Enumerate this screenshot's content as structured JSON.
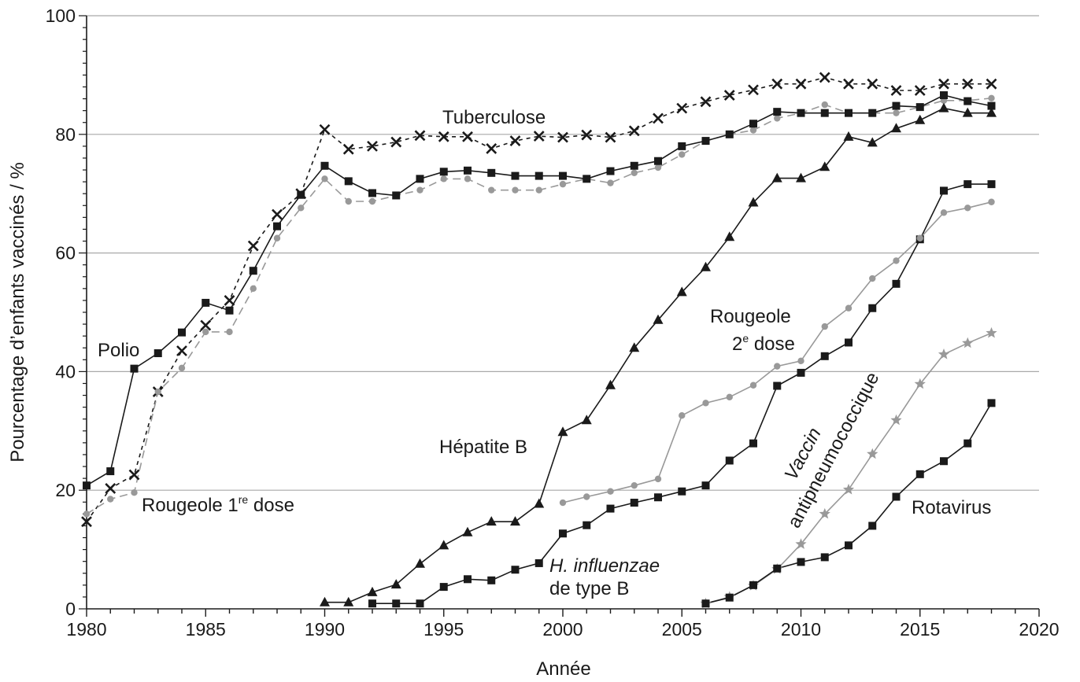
{
  "chart_data": {
    "type": "line",
    "xlabel": "Année",
    "ylabel": "Pourcentage d’enfants vaccinés / %",
    "xlim": [
      1980,
      2020
    ],
    "ylim": [
      0,
      100
    ],
    "x_ticks": [
      1980,
      1985,
      1990,
      1995,
      2000,
      2005,
      2010,
      2015,
      2020
    ],
    "y_ticks": [
      0,
      20,
      40,
      60,
      80,
      100
    ],
    "grid": "horizontal",
    "legend": "none",
    "labels": {
      "polio": "Polio",
      "rougeole1": "Rougeole 1",
      "rougeole1_sup": "re",
      "rougeole1_tail": " dose",
      "tuberculose": "Tuberculose",
      "hepatite": "Hépatite B",
      "hib_italic": "H. influenzae",
      "hib_line2": "de type B",
      "rougeole2_line1": "Rougeole",
      "rougeole2_num": "2",
      "rougeole2_sup": "e",
      "rougeole2_tail": " dose",
      "pneumo_line1": "Vaccin",
      "pneumo_line2": "antipneumococcique",
      "rotavirus": "Rotavirus"
    },
    "series": [
      {
        "id": "tuberculose",
        "color": "#1a1a1a",
        "dash": "5,5",
        "marker": "x",
        "x": [
          1980,
          1981,
          1982,
          1983,
          1984,
          1985,
          1986,
          1987,
          1988,
          1989,
          1990,
          1991,
          1992,
          1993,
          1994,
          1995,
          1996,
          1997,
          1998,
          1999,
          2000,
          2001,
          2002,
          2003,
          2004,
          2005,
          2006,
          2007,
          2008,
          2009,
          2010,
          2011,
          2012,
          2013,
          2014,
          2015,
          2016,
          2017,
          2018
        ],
        "values": [
          14.7,
          20.3,
          22.6,
          36.6,
          43.5,
          47.8,
          52.0,
          61.2,
          66.5,
          70.0,
          80.8,
          77.5,
          78.0,
          78.7,
          79.8,
          79.6,
          79.6,
          77.6,
          78.9,
          79.7,
          79.5,
          79.9,
          79.5,
          80.6,
          82.7,
          84.4,
          85.5,
          86.6,
          87.5,
          88.5,
          88.5,
          89.6,
          88.5,
          88.5,
          87.4,
          87.4,
          88.5,
          88.5,
          88.5
        ]
      },
      {
        "id": "rougeole1",
        "color": "#999999",
        "dash": "10,6",
        "marker": "circle",
        "x": [
          1980,
          1981,
          1982,
          1983,
          1984,
          1985,
          1986,
          1987,
          1988,
          1989,
          1990,
          1991,
          1992,
          1993,
          1994,
          1995,
          1996,
          1997,
          1998,
          1999,
          2000,
          2001,
          2002,
          2003,
          2004,
          2005,
          2006,
          2007,
          2008,
          2009,
          2010,
          2011,
          2012,
          2013,
          2014,
          2015,
          2016,
          2017,
          2018
        ],
        "values": [
          16.0,
          18.5,
          19.6,
          36.6,
          40.6,
          46.7,
          46.7,
          54.0,
          62.5,
          67.6,
          72.5,
          68.7,
          68.7,
          69.7,
          70.6,
          72.5,
          72.5,
          70.6,
          70.6,
          70.6,
          71.6,
          72.5,
          71.8,
          73.5,
          74.4,
          76.6,
          78.9,
          80.0,
          80.7,
          82.7,
          83.6,
          85.0,
          83.6,
          83.6,
          83.6,
          84.6,
          85.7,
          85.7,
          86.1
        ]
      },
      {
        "id": "polio",
        "color": "#1a1a1a",
        "dash": "",
        "marker": "square",
        "x": [
          1980,
          1981,
          1982,
          1983,
          1984,
          1985,
          1986,
          1987,
          1988,
          1989,
          1990,
          1991,
          1992,
          1993,
          1994,
          1995,
          1996,
          1997,
          1998,
          1999,
          2000,
          2001,
          2002,
          2003,
          2004,
          2005,
          2006,
          2007,
          2008,
          2009,
          2010,
          2011,
          2012,
          2013,
          2014,
          2015,
          2016,
          2017,
          2018
        ],
        "values": [
          20.8,
          23.2,
          40.5,
          43.1,
          46.6,
          51.6,
          50.3,
          57.0,
          64.5,
          69.8,
          74.7,
          72.1,
          70.1,
          69.7,
          72.5,
          73.7,
          73.9,
          73.5,
          73.0,
          73.0,
          73.0,
          72.5,
          73.8,
          74.7,
          75.5,
          78.0,
          78.9,
          80.0,
          81.8,
          83.8,
          83.6,
          83.6,
          83.6,
          83.6,
          84.8,
          84.6,
          86.6,
          85.6,
          84.8
        ]
      },
      {
        "id": "hepatite",
        "color": "#1a1a1a",
        "dash": "",
        "marker": "triangle",
        "x": [
          1990,
          1991,
          1992,
          1993,
          1994,
          1995,
          1996,
          1997,
          1998,
          1999,
          2000,
          2001,
          2002,
          2003,
          2004,
          2005,
          2006,
          2007,
          2008,
          2009,
          2010,
          2011,
          2012,
          2013,
          2014,
          2015,
          2016,
          2017,
          2018
        ],
        "values": [
          1.1,
          1.1,
          2.8,
          4.1,
          7.6,
          10.7,
          12.9,
          14.7,
          14.7,
          17.7,
          29.8,
          31.8,
          37.7,
          44.0,
          48.7,
          53.4,
          57.6,
          62.7,
          68.5,
          72.6,
          72.6,
          74.5,
          79.6,
          78.6,
          81.0,
          82.4,
          84.4,
          83.6,
          83.6
        ]
      },
      {
        "id": "hib",
        "color": "#1a1a1a",
        "dash": "",
        "marker": "square",
        "x": [
          1992,
          1993,
          1994,
          1995,
          1996,
          1997,
          1998,
          1999,
          2000,
          2001,
          2002,
          2003,
          2004,
          2005,
          2006,
          2007,
          2008,
          2009,
          2010,
          2011,
          2012,
          2013,
          2014,
          2015,
          2016,
          2017,
          2018
        ],
        "values": [
          0.9,
          0.9,
          0.9,
          3.7,
          5.0,
          4.8,
          6.6,
          7.7,
          12.7,
          14.1,
          16.9,
          17.9,
          18.8,
          19.8,
          20.8,
          25.0,
          27.9,
          37.6,
          39.8,
          42.6,
          44.9,
          50.7,
          54.8,
          62.3,
          70.5,
          71.6,
          71.6
        ]
      },
      {
        "id": "rougeole2",
        "color": "#999999",
        "dash": "",
        "marker": "circle",
        "x": [
          2000,
          2001,
          2002,
          2003,
          2004,
          2005,
          2006,
          2007,
          2008,
          2009,
          2010,
          2011,
          2012,
          2013,
          2014,
          2015,
          2016,
          2017,
          2018
        ],
        "values": [
          17.9,
          18.9,
          19.8,
          20.8,
          21.9,
          32.6,
          34.7,
          35.7,
          37.7,
          40.9,
          41.8,
          47.6,
          50.7,
          55.7,
          58.7,
          62.5,
          66.8,
          67.6,
          68.6
        ]
      },
      {
        "id": "pneumo",
        "color": "#999999",
        "dash": "",
        "marker": "star",
        "x": [
          2006,
          2007,
          2008,
          2009,
          2010,
          2011,
          2012,
          2013,
          2014,
          2015,
          2016,
          2017,
          2018
        ],
        "values": [
          0.9,
          2.0,
          3.9,
          6.7,
          10.9,
          16.0,
          20.1,
          26.1,
          31.8,
          37.9,
          42.9,
          44.8,
          46.5
        ]
      },
      {
        "id": "rotavirus",
        "color": "#1a1a1a",
        "dash": "",
        "marker": "square",
        "x": [
          2006,
          2007,
          2008,
          2009,
          2010,
          2011,
          2012,
          2013,
          2014,
          2015,
          2016,
          2017,
          2018
        ],
        "values": [
          0.9,
          1.9,
          4.0,
          6.8,
          7.9,
          8.7,
          10.7,
          14.0,
          18.9,
          22.7,
          24.9,
          27.9,
          34.7
        ]
      }
    ]
  }
}
